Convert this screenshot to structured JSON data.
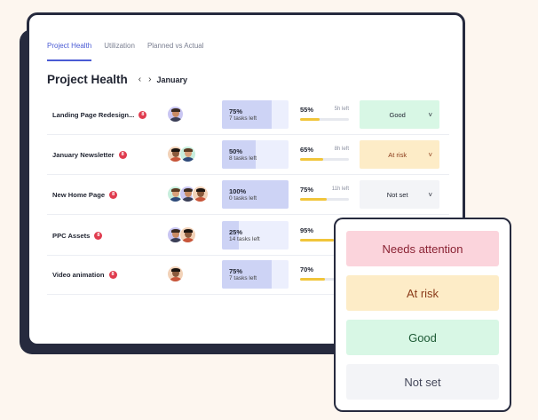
{
  "tabs": [
    "Project Health",
    "Utilization",
    "Planned vs Actual"
  ],
  "page_title": "Project Health",
  "month": "January",
  "rows": [
    {
      "name": "Landing Page Redesign...",
      "badge": "8",
      "avatars": 1,
      "progress_pct": "75%",
      "progress": 0.75,
      "tasks": "7 tasks left",
      "time_pct": "55%",
      "time": 0.55,
      "time_left": "5h left",
      "status": "Good",
      "status_kind": "good"
    },
    {
      "name": "January Newsletter",
      "badge": "8",
      "avatars": 2,
      "progress_pct": "50%",
      "progress": 0.5,
      "tasks": "8 tasks left",
      "time_pct": "65%",
      "time": 0.65,
      "time_left": "8h left",
      "status": "At risk",
      "status_kind": "risk"
    },
    {
      "name": "New Home Page",
      "badge": "8",
      "avatars": 3,
      "progress_pct": "100%",
      "progress": 1.0,
      "tasks": "0 tasks left",
      "time_pct": "75%",
      "time": 0.75,
      "time_left": "11h left",
      "status": "Not set",
      "status_kind": "notset"
    },
    {
      "name": "PPC Assets",
      "badge": "8",
      "avatars": 2,
      "progress_pct": "25%",
      "progress": 0.25,
      "tasks": "14 tasks left",
      "time_pct": "95%",
      "time": 0.95,
      "time_left": "",
      "status": "",
      "status_kind": ""
    },
    {
      "name": "Video animation",
      "badge": "8",
      "avatars": 1,
      "progress_pct": "75%",
      "progress": 0.75,
      "tasks": "7 tasks left",
      "time_pct": "70%",
      "time": 0.7,
      "time_left": "",
      "status": "",
      "status_kind": ""
    }
  ],
  "dropdown_options": [
    "Needs attention",
    "At risk",
    "Good",
    "Not set"
  ],
  "colors": {
    "accent": "#4a5bd4",
    "frame": "#262a3e",
    "bar": "#f1c53a",
    "badge": "#e03c4f"
  }
}
